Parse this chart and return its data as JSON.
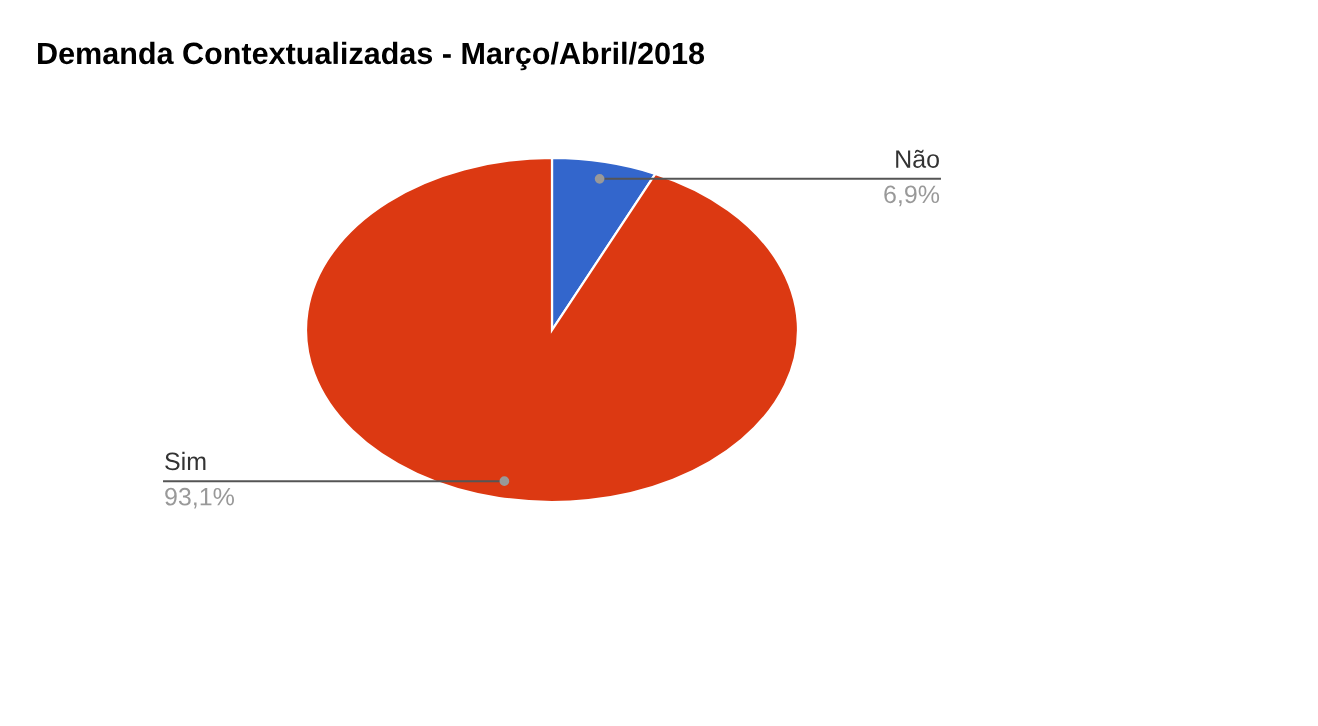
{
  "chart_data": {
    "type": "pie",
    "title": "Demanda Contextualizadas - Março/Abril/2018",
    "categories": [
      "Não",
      "Sim"
    ],
    "values": [
      6.9,
      93.1
    ],
    "colors": [
      "#3366cc",
      "#dc3912"
    ],
    "value_labels": [
      "6,9%",
      "93,1%"
    ],
    "legend": false
  }
}
